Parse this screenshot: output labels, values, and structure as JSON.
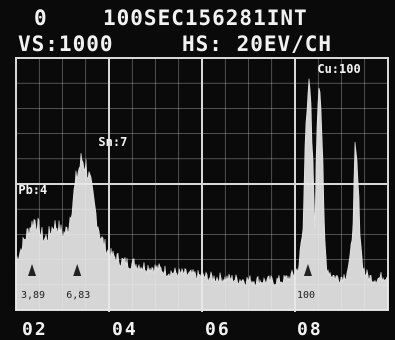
{
  "header": {
    "count": "0",
    "acquisition": "100SEC156281INT",
    "vertical_scale": "VS:1000",
    "horizontal_scale": "HS: 20EV/CH"
  },
  "colors": {
    "background": "#0a0a0a",
    "trace": "#e8e8e8",
    "grid": "#d8d8d8",
    "text": "#f2f2f2"
  },
  "chart_data": {
    "type": "area",
    "title": "",
    "xlabel": "",
    "ylabel": "",
    "xlim": [
      1.7,
      9.6
    ],
    "ylim": [
      0,
      1000
    ],
    "grid": true,
    "x_tick_labels": [
      "02",
      "04",
      "06",
      "08"
    ],
    "x_ticks": [
      2,
      4,
      6,
      8
    ],
    "peak_labels": [
      {
        "text": "Sn:7",
        "x": 3.45,
        "y": 650
      },
      {
        "text": "Pb:4",
        "x": 1.75,
        "y": 460
      },
      {
        "text": "Cu:100",
        "x": 8.1,
        "y": 940
      }
    ],
    "markers": [
      {
        "label": "3,89",
        "x": 2.04
      },
      {
        "label": "6,83",
        "x": 3.0
      },
      {
        "label": "100",
        "x": 7.9
      }
    ],
    "series": [
      {
        "x": [
          1.7,
          1.8,
          1.9,
          2.0,
          2.1,
          2.2,
          2.3,
          2.4,
          2.5,
          2.6,
          2.7,
          2.8,
          2.9,
          3.0,
          3.1,
          3.2,
          3.3,
          3.4,
          3.5,
          3.6,
          3.7,
          3.8,
          3.9,
          4.0,
          4.2,
          4.4,
          4.6,
          4.8,
          5.0,
          5.2,
          5.4,
          5.6,
          5.8,
          6.0,
          6.2,
          6.4,
          6.6,
          6.8,
          7.0,
          7.2,
          7.4,
          7.6,
          7.7,
          7.8,
          7.85,
          7.9,
          7.95,
          8.0,
          8.05,
          8.1,
          8.15,
          8.2,
          8.25,
          8.3,
          8.4,
          8.5,
          8.6,
          8.7,
          8.8,
          8.85,
          8.9,
          8.95,
          9.0,
          9.05,
          9.1,
          9.2,
          9.3,
          9.4,
          9.5,
          9.6
        ],
        "values": [
          200,
          240,
          290,
          330,
          360,
          320,
          280,
          300,
          340,
          330,
          300,
          320,
          430,
          540,
          600,
          570,
          480,
          380,
          290,
          250,
          220,
          210,
          200,
          190,
          185,
          175,
          170,
          160,
          150,
          145,
          140,
          135,
          130,
          128,
          125,
          122,
          120,
          118,
          116,
          115,
          120,
          140,
          170,
          330,
          780,
          880,
          840,
          600,
          350,
          820,
          960,
          700,
          300,
          170,
          140,
          130,
          130,
          140,
          200,
          340,
          620,
          560,
          350,
          200,
          150,
          130,
          125,
          125,
          135,
          140
        ]
      }
    ]
  }
}
